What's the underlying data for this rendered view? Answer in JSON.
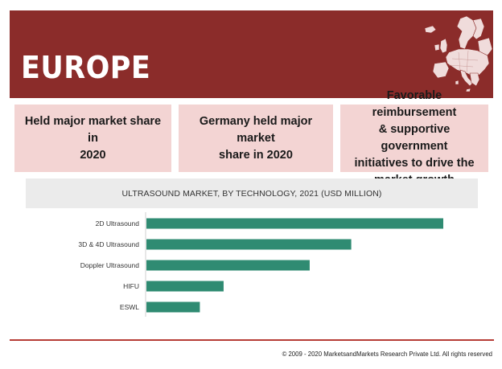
{
  "banner": {
    "title": "EUROPE"
  },
  "cards": [
    {
      "lines": [
        "Held major market share in",
        "2020"
      ]
    },
    {
      "lines": [
        "Germany held major market",
        "share in 2020"
      ]
    },
    {
      "lines": [
        "Favorable reimbursement",
        "& supportive government",
        "initiatives to drive the",
        "market growth"
      ]
    }
  ],
  "colors": {
    "banner": "#8b2c2a",
    "card": "#f3d4d3",
    "bar": "#2f8b72",
    "rule": "#b63c36"
  },
  "icons": {
    "map": "europe-map-icon"
  },
  "chart_data": {
    "type": "bar",
    "orientation": "horizontal",
    "title": "ULTRASOUND MARKET, BY TECHNOLOGY, 2021 (USD MILLION)",
    "categories": [
      "2D Ultrasound",
      "3D & 4D Ultrasound",
      "Doppler Ultrasound",
      "HIFU",
      "ESWL"
    ],
    "values": [
      100,
      69,
      55,
      26,
      18
    ],
    "xlim": [
      0,
      100
    ],
    "grid": false,
    "legend": "none",
    "bar_color": "#2f8b72"
  },
  "footer": {
    "copyright": "© 2009 - 2020 MarketsandMarkets Research Private Ltd. All rights reserved"
  }
}
